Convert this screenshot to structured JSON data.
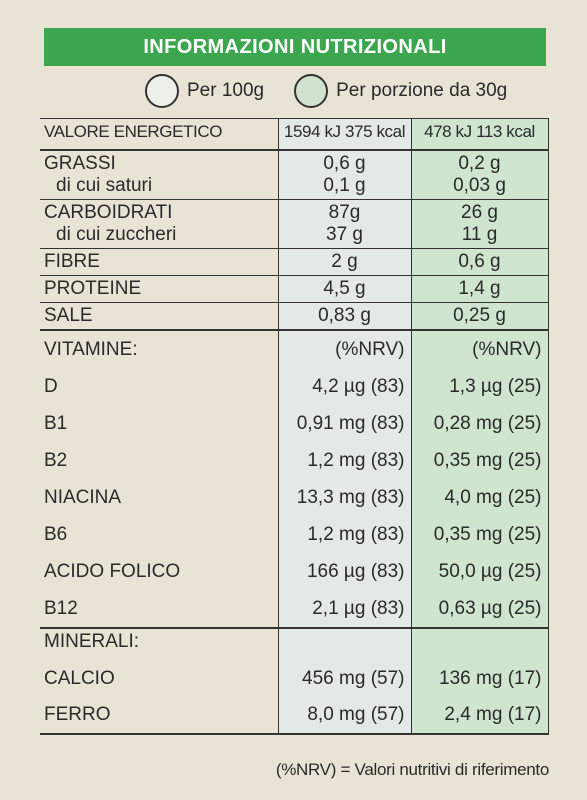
{
  "header": {
    "title": "INFORMAZIONI NUTRIZIONALI"
  },
  "legend": {
    "per100": "Per 100g",
    "perPortion": "Per porzione da 30g"
  },
  "energy": {
    "label": "VALORE ENERGETICO",
    "v100": "1594 kJ 375 kcal",
    "vPortion": "478 kJ 113 kcal"
  },
  "fats": {
    "label": "GRASSI",
    "sublabel": "di cui saturi",
    "v100": "0,6 g",
    "v100sub": "0,1 g",
    "vPortion": "0,2 g",
    "vPortionSub": "0,03 g"
  },
  "carbs": {
    "label": "CARBOIDRATI",
    "sublabel": "di cui zuccheri",
    "v100": "87g",
    "v100sub": "37 g",
    "vPortion": "26 g",
    "vPortionSub": "11 g"
  },
  "fibre": {
    "label": "FIBRE",
    "v100": "2 g",
    "vPortion": "0,6 g"
  },
  "protein": {
    "label": "PROTEINE",
    "v100": "4,5 g",
    "vPortion": "1,4 g"
  },
  "salt": {
    "label": "SALE",
    "v100": "0,83 g",
    "vPortion": "0,25 g"
  },
  "vitamins": {
    "label": "VITAMINE:",
    "nrv100": "(%NRV)",
    "nrvPortion": "(%NRV)",
    "items": [
      {
        "name": "D",
        "v100": "4,2 µg (83)",
        "vPortion": "1,3 µg (25)"
      },
      {
        "name": "B1",
        "v100": "0,91 mg (83)",
        "vPortion": "0,28 mg (25)"
      },
      {
        "name": "B2",
        "v100": "1,2 mg (83)",
        "vPortion": "0,35 mg (25)"
      },
      {
        "name": "NIACINA",
        "v100": "13,3 mg (83)",
        "vPortion": "4,0 mg (25)"
      },
      {
        "name": "B6",
        "v100": "1,2 mg (83)",
        "vPortion": "0,35 mg (25)"
      },
      {
        "name": "ACIDO FOLICO",
        "v100": "166 µg (83)",
        "vPortion": "50,0 µg (25)"
      },
      {
        "name": "B12",
        "v100": "2,1 µg (83)",
        "vPortion": "0,63 µg (25)"
      }
    ]
  },
  "minerals": {
    "label": "MINERALI:",
    "items": [
      {
        "name": "CALCIO",
        "v100": "456 mg (57)",
        "vPortion": "136 mg (17)"
      },
      {
        "name": "FERRO",
        "v100": "8,0 mg (57)",
        "vPortion": "2,4 mg (17)"
      }
    ]
  },
  "footer": {
    "note": "(%NRV) = Valori nutritivi di riferimento"
  },
  "colors": {
    "header_green": "#3ca64f",
    "col100_bg": "#e3e9e6",
    "colPortion_bg": "#cfe5d0",
    "paper": "#e9e3d6"
  }
}
